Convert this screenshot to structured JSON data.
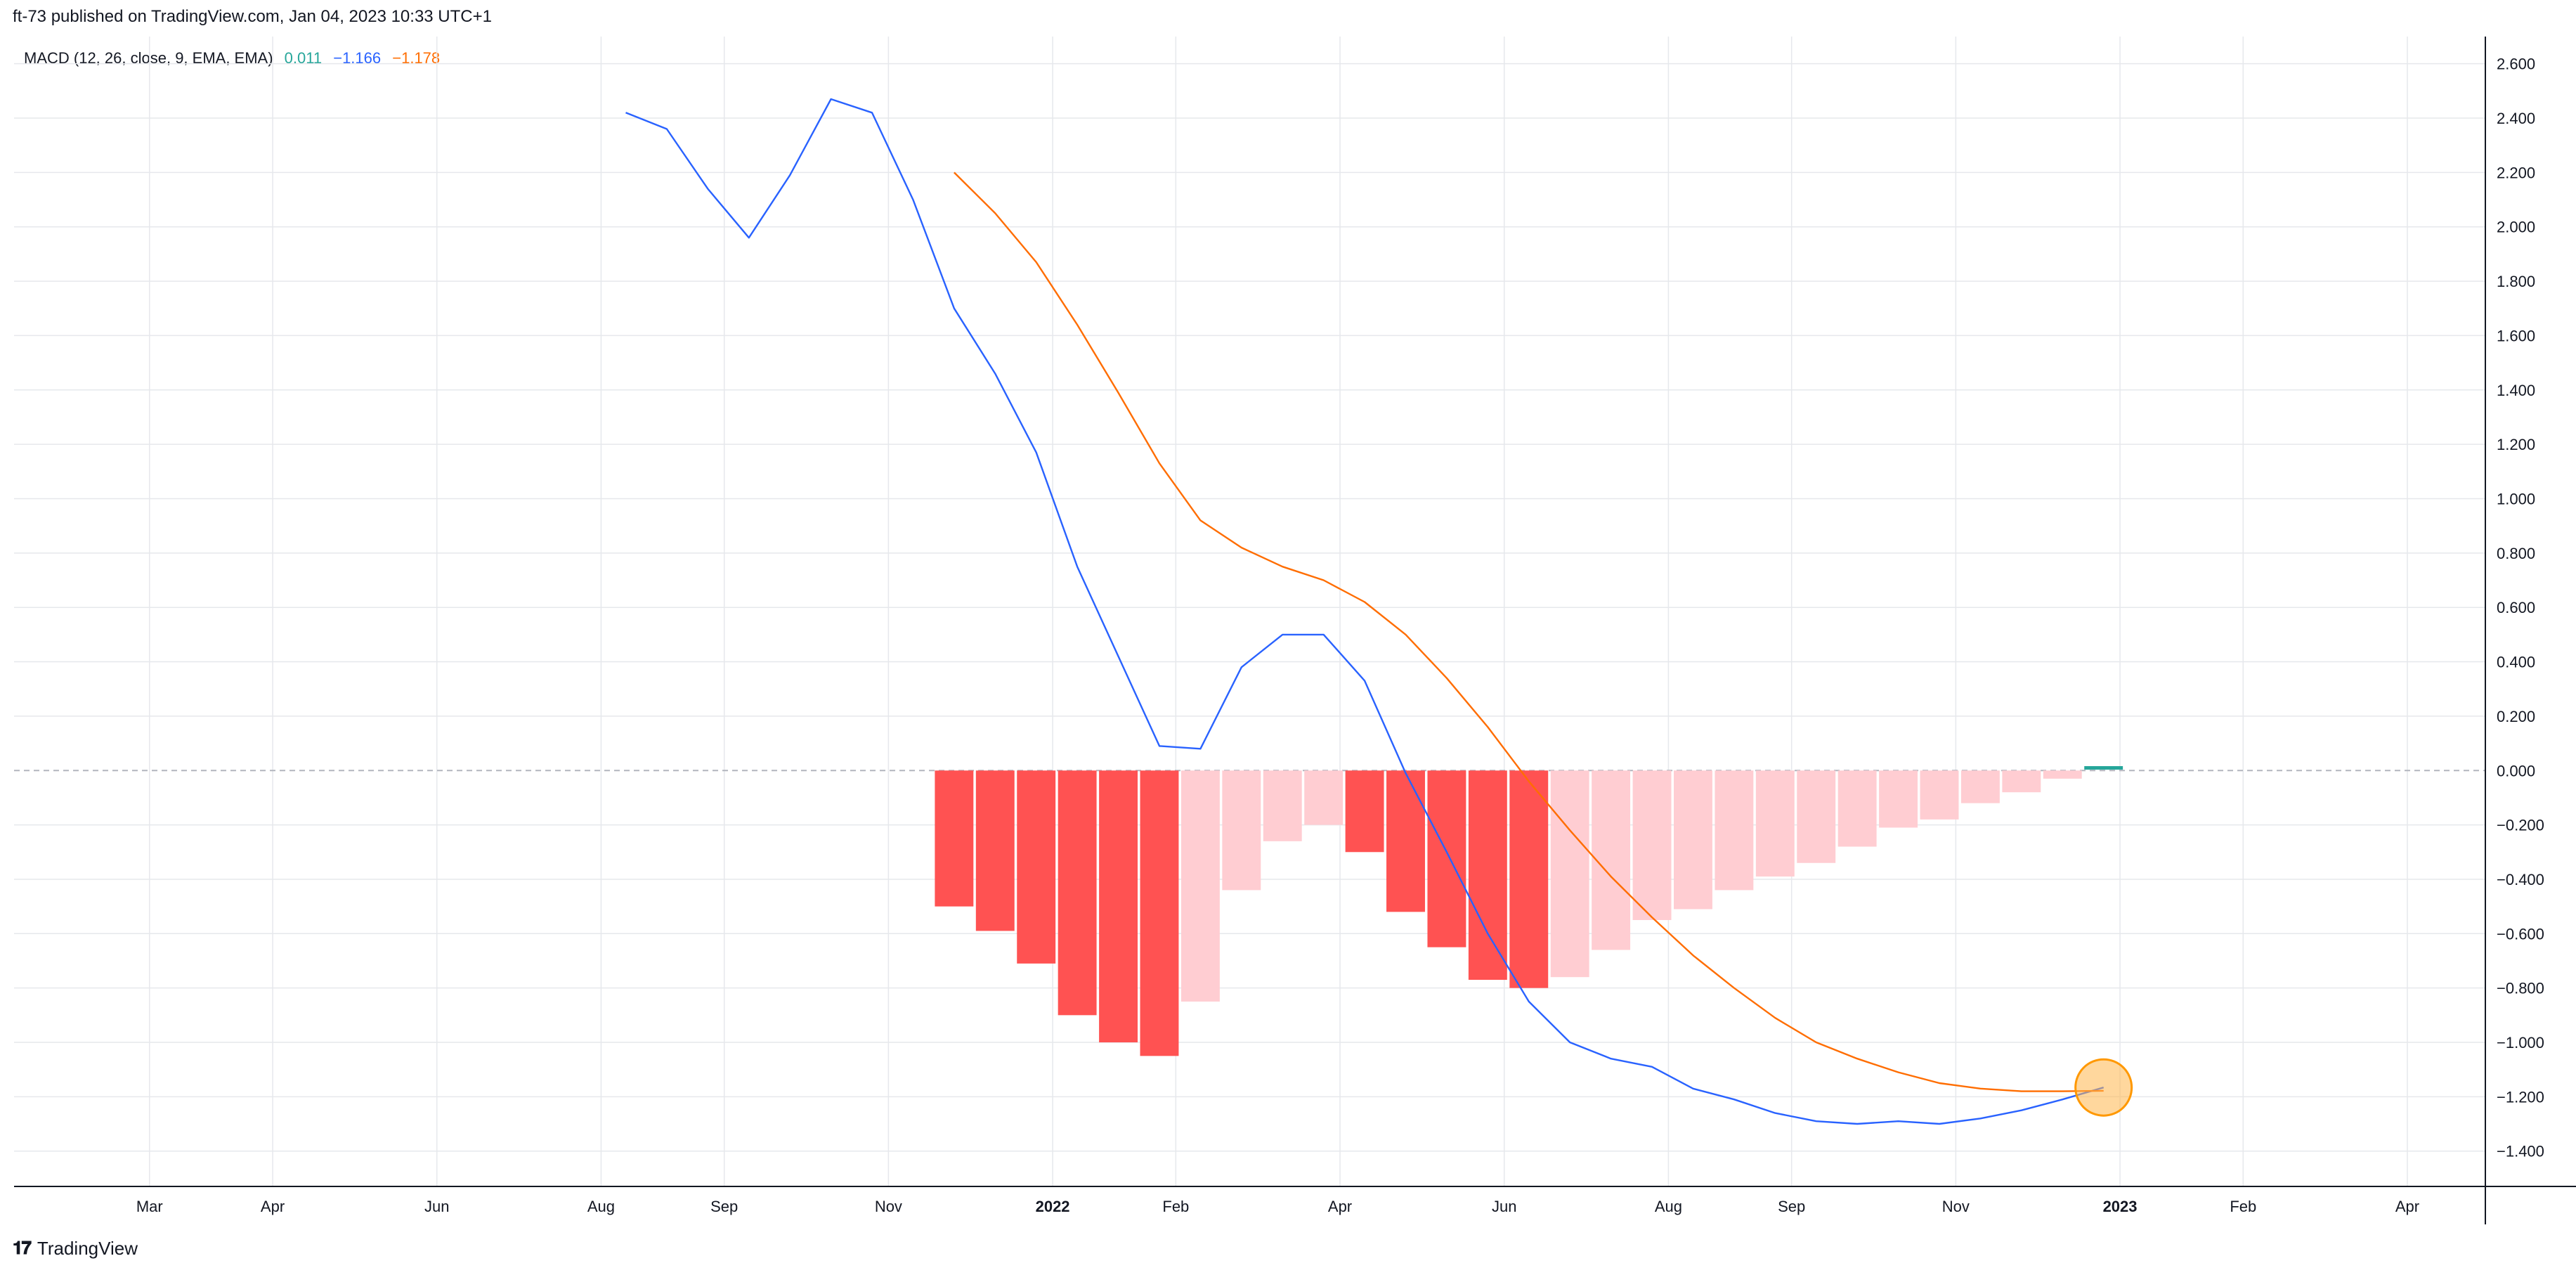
{
  "header": {
    "publisher": "ft-73 published on TradingView.com, Jan 04, 2023 10:33 UTC+1"
  },
  "footer": {
    "brand": "TradingView"
  },
  "colors": {
    "macd": "#2962ff",
    "signal": "#ff6d00",
    "hist_strong_neg": "#ff5252",
    "hist_weak_neg": "#ffcdd2",
    "hist_pos": "#26a69a",
    "grid": "#e6e8ec",
    "zero_line": "#b2b5be",
    "marker": "#ffb74d"
  },
  "chart_data": {
    "type": "line",
    "indicator": "MACD",
    "legend": {
      "name": "MACD (12, 26, close, 9, EMA, EMA)",
      "histogram_value": "0.011",
      "macd_value": "−1.166",
      "signal_value": "−1.178"
    },
    "x_axis": {
      "labels": [
        {
          "label": "Mar",
          "pos": 2.4,
          "bold": false
        },
        {
          "label": "Apr",
          "pos": 5.4,
          "bold": false
        },
        {
          "label": "Jun",
          "pos": 9.4,
          "bold": false
        },
        {
          "label": "Aug",
          "pos": 13.4,
          "bold": false
        },
        {
          "label": "Sep",
          "pos": 16.4,
          "bold": false
        },
        {
          "label": "Nov",
          "pos": 20.4,
          "bold": false
        },
        {
          "label": "2022",
          "pos": 24.4,
          "bold": true
        },
        {
          "label": "Feb",
          "pos": 27.4,
          "bold": false
        },
        {
          "label": "Apr",
          "pos": 31.4,
          "bold": false
        },
        {
          "label": "Jun",
          "pos": 35.4,
          "bold": false
        },
        {
          "label": "Aug",
          "pos": 39.4,
          "bold": false
        },
        {
          "label": "Sep",
          "pos": 42.4,
          "bold": false
        },
        {
          "label": "Nov",
          "pos": 46.4,
          "bold": false
        },
        {
          "label": "2023",
          "pos": 50.4,
          "bold": true
        },
        {
          "label": "Feb",
          "pos": 53.4,
          "bold": false
        },
        {
          "label": "Apr",
          "pos": 57.4,
          "bold": false
        }
      ],
      "range": [
        -0.9,
        59.3
      ]
    },
    "y_axis": {
      "ticks": [
        "2.600",
        "2.400",
        "2.200",
        "2.000",
        "1.800",
        "1.600",
        "1.400",
        "1.200",
        "1.000",
        "0.800",
        "0.600",
        "0.400",
        "0.200",
        "0.000",
        "−0.200",
        "−0.400",
        "−0.600",
        "−0.800",
        "−1.000",
        "−1.200",
        "−1.400"
      ],
      "range": [
        -1.53,
        2.7
      ]
    },
    "series": [
      {
        "name": "MACD",
        "x": [
          14,
          15,
          16,
          17,
          18,
          19,
          20,
          21,
          22,
          23,
          24,
          25,
          26,
          27,
          28,
          29,
          30,
          31,
          32,
          33,
          34,
          35,
          36,
          37,
          38,
          39,
          40,
          41,
          42,
          43,
          44,
          45,
          46,
          47,
          48,
          49,
          50
        ],
        "values": [
          2.42,
          2.36,
          2.14,
          1.96,
          2.19,
          2.47,
          2.42,
          2.1,
          1.7,
          1.46,
          1.17,
          0.75,
          0.42,
          0.09,
          0.08,
          0.38,
          0.5,
          0.5,
          0.33,
          -0.01,
          -0.3,
          -0.6,
          -0.85,
          -1.0,
          -1.06,
          -1.09,
          -1.17,
          -1.21,
          -1.26,
          -1.29,
          -1.3,
          -1.29,
          -1.3,
          -1.28,
          -1.25,
          -1.21,
          -1.166
        ]
      },
      {
        "name": "Signal",
        "x": [
          22,
          23,
          24,
          25,
          26,
          27,
          28,
          29,
          30,
          31,
          32,
          33,
          34,
          35,
          36,
          37,
          38,
          39,
          40,
          41,
          42,
          43,
          44,
          45,
          46,
          47,
          48,
          49,
          50
        ],
        "values": [
          2.2,
          2.05,
          1.87,
          1.64,
          1.39,
          1.13,
          0.92,
          0.82,
          0.75,
          0.7,
          0.62,
          0.5,
          0.34,
          0.16,
          -0.04,
          -0.22,
          -0.39,
          -0.54,
          -0.68,
          -0.8,
          -0.91,
          -1.0,
          -1.06,
          -1.11,
          -1.15,
          -1.17,
          -1.18,
          -1.18,
          -1.178
        ]
      }
    ],
    "histogram": {
      "x": [
        22,
        23,
        24,
        25,
        26,
        27,
        28,
        29,
        30,
        31,
        32,
        33,
        34,
        35,
        36,
        37,
        38,
        39,
        40,
        41,
        42,
        43,
        44,
        45,
        46,
        47,
        48,
        49,
        50
      ],
      "values": [
        -0.5,
        -0.59,
        -0.71,
        -0.9,
        -1.0,
        -1.05,
        -0.85,
        -0.44,
        -0.26,
        -0.2,
        -0.3,
        -0.52,
        -0.65,
        -0.77,
        -0.8,
        -0.76,
        -0.66,
        -0.55,
        -0.51,
        -0.44,
        -0.39,
        -0.34,
        -0.28,
        -0.21,
        -0.18,
        -0.12,
        -0.08,
        -0.03,
        0.011
      ],
      "strength": [
        "strong",
        "strong",
        "strong",
        "strong",
        "strong",
        "strong",
        "weak",
        "weak",
        "weak",
        "weak",
        "strong",
        "strong",
        "strong",
        "strong",
        "strong",
        "weak",
        "weak",
        "weak",
        "weak",
        "weak",
        "weak",
        "weak",
        "weak",
        "weak",
        "weak",
        "weak",
        "weak",
        "weak",
        "pos"
      ]
    },
    "marker": {
      "x": 50,
      "y": -1.166
    },
    "grid": true
  }
}
